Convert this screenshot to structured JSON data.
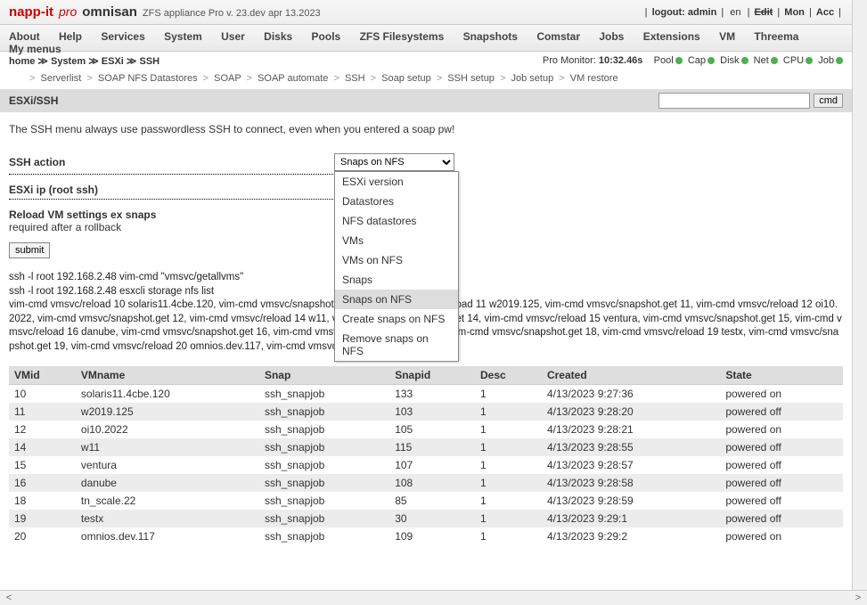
{
  "top": {
    "logo": "napp-it",
    "pro": "pro",
    "host": "omnisan",
    "version": "ZFS appliance Pro v. 23.dev apr 13.2023",
    "logout_pre": "| ",
    "logout_lbl": "logout:",
    "logout_user": "admin",
    "lang": "en",
    "edit": "Edit",
    "mon": "Mon",
    "acc": "Acc"
  },
  "menu": [
    "About",
    "Help",
    "Services",
    "System",
    "User",
    "Disks",
    "Pools",
    "ZFS Filesystems",
    "Snapshots",
    "Comstar",
    "Jobs",
    "Extensions",
    "VM",
    "Threema",
    "My menus"
  ],
  "crumb": {
    "home": "home",
    "system": "System",
    "esxi": "ESXi",
    "ssh": "SSH",
    "sep": "≫"
  },
  "status": {
    "promon_lbl": "Pro Monitor:",
    "promon_val": "10:32.46s",
    "items": [
      "Pool",
      "Cap",
      "Disk",
      "Net",
      "CPU",
      "Job"
    ]
  },
  "subnav": [
    "Serverlist",
    "SOAP NFS Datastores",
    "SOAP",
    "SOAP automate",
    "SSH",
    "Soap setup",
    "SSH setup",
    "Job setup",
    "VM restore"
  ],
  "section_title": "ESXi/SSH",
  "cmd_btn": "cmd",
  "info_text": "The SSH menu always use passwordless SSH to connect, even when you entered a soap pw!",
  "form": {
    "action_lbl": "SSH action",
    "action_sel": "Snaps on NFS",
    "ip_lbl": "ESXi ip (root ssh)",
    "reload_lbl": "Reload VM settings ex snaps",
    "reload_sub": "required after a rollback",
    "submit": "submit"
  },
  "dropdown": [
    "ESXi version",
    "Datastores",
    "NFS datastores",
    "VMs",
    "VMs on NFS",
    "Snaps",
    "Snaps on NFS",
    "Create snaps on NFS",
    "Remove snaps on NFS"
  ],
  "dropdown_selected": "Snaps on NFS",
  "cmdout": "ssh -l root 192.168.2.48 vim-cmd \"vmsvc/getallvms\"\nssh -l root 192.168.2.48 esxcli storage nfs list\nvim-cmd vmsvc/reload 10 solaris11.4cbe.120, vim-cmd vmsvc/snapshot.get 10, vim-cmd vmsvc/reload 11 w2019.125, vim-cmd vmsvc/snapshot.get 11, vim-cmd vmsvc/reload 12 oi10.2022, vim-cmd vmsvc/snapshot.get 12, vim-cmd vmsvc/reload 14 w11, vim-cmd vmsvc/snapshot.get 14, vim-cmd vmsvc/reload 15 ventura, vim-cmd vmsvc/snapshot.get 15, vim-cmd vmsvc/reload 16 danube, vim-cmd vmsvc/snapshot.get 16, vim-cmd vmsvc/reload 18 tn_scale.22, vim-cmd vmsvc/snapshot.get 18, vim-cmd vmsvc/reload 19 testx, vim-cmd vmsvc/snapshot.get 19, vim-cmd vmsvc/reload 20 omnios.dev.117, vim-cmd vmsvc/snapshot.get 20,",
  "table": {
    "cols": [
      "VMid",
      "VMname",
      "Snap",
      "Snapid",
      "Desc",
      "Created",
      "State"
    ],
    "rows": [
      [
        "10",
        "solaris11.4cbe.120",
        "ssh_snapjob",
        "133",
        "1",
        "4/13/2023 9:27:36",
        "powered on"
      ],
      [
        "11",
        "w2019.125",
        "ssh_snapjob",
        "103",
        "1",
        "4/13/2023 9:28:20",
        "powered off"
      ],
      [
        "12",
        "oi10.2022",
        "ssh_snapjob",
        "105",
        "1",
        "4/13/2023 9:28:21",
        "powered on"
      ],
      [
        "14",
        "w11",
        "ssh_snapjob",
        "115",
        "1",
        "4/13/2023 9:28:55",
        "powered off"
      ],
      [
        "15",
        "ventura",
        "ssh_snapjob",
        "107",
        "1",
        "4/13/2023 9:28:57",
        "powered off"
      ],
      [
        "16",
        "danube",
        "ssh_snapjob",
        "108",
        "1",
        "4/13/2023 9:28:58",
        "powered off"
      ],
      [
        "18",
        "tn_scale.22",
        "ssh_snapjob",
        "85",
        "1",
        "4/13/2023 9:28:59",
        "powered off"
      ],
      [
        "19",
        "testx",
        "ssh_snapjob",
        "30",
        "1",
        "4/13/2023 9:29:1",
        "powered off"
      ],
      [
        "20",
        "omnios.dev.117",
        "ssh_snapjob",
        "109",
        "1",
        "4/13/2023 9:29:2",
        "powered on"
      ]
    ]
  }
}
